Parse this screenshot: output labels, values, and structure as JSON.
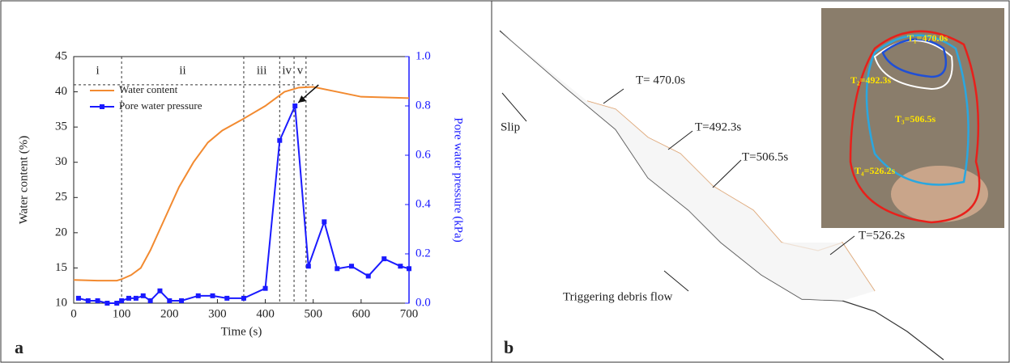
{
  "chart_data": {
    "type": "line",
    "xlabel": "Time (s)",
    "ylabel": "Water content (%)",
    "y2label": "Pore water pressure (kPa)",
    "xlim": [
      0,
      700
    ],
    "xticks": [
      0,
      100,
      200,
      300,
      400,
      500,
      600,
      700
    ],
    "ylim": [
      10,
      45
    ],
    "yticks": [
      10,
      15,
      20,
      25,
      30,
      35,
      40,
      45
    ],
    "y2lim": [
      0,
      1
    ],
    "y2ticks": [
      {
        "value": 0,
        "label": "0.0"
      },
      {
        "value": 0.2,
        "label": "0.2"
      },
      {
        "value": 0.4,
        "label": "0.4"
      },
      {
        "value": 0.6,
        "label": "0.6"
      },
      {
        "value": 0.8,
        "label": "0.8"
      },
      {
        "value": 1,
        "label": "1.0"
      }
    ],
    "legend": "upper left",
    "series": [
      {
        "name": "Water content",
        "color": "#f28a30",
        "marker": "none",
        "x": [
          0,
          50,
          90,
          100,
          120,
          140,
          160,
          180,
          200,
          220,
          250,
          280,
          310,
          350,
          400,
          440,
          470,
          500,
          550,
          600,
          650,
          700
        ],
        "values": [
          13.3,
          13.2,
          13.2,
          13.4,
          14,
          15,
          17.5,
          20.5,
          23.5,
          26.5,
          30,
          32.8,
          34.5,
          36,
          38,
          40,
          40.6,
          40.7,
          40,
          39.3,
          39.2,
          39.1
        ]
      },
      {
        "name": "Pore water pressure",
        "color": "#1a1aff",
        "marker": "square",
        "axis": "y2",
        "x": [
          10,
          30,
          50,
          70,
          90,
          100,
          115,
          130,
          145,
          160,
          180,
          200,
          225,
          260,
          290,
          320,
          355,
          400,
          430,
          462,
          490,
          523,
          550,
          580,
          615,
          648,
          682,
          700
        ],
        "values": [
          0.02,
          0.01,
          0.01,
          0,
          0,
          0.01,
          0.02,
          0.02,
          0.03,
          0.01,
          0.05,
          0.01,
          0.01,
          0.03,
          0.03,
          0.02,
          0.02,
          0.06,
          0.66,
          0.8,
          0.15,
          0.33,
          0.14,
          0.15,
          0.11,
          0.18,
          0.15,
          0.14
        ]
      }
    ],
    "phase_boundaries": [
      100,
      355,
      430,
      460,
      485
    ],
    "phase_labels": [
      "i",
      "ii",
      "iii",
      "iv",
      "v"
    ],
    "reference_line": 41
  },
  "panel_labels": [
    "a",
    "b"
  ],
  "diagram": {
    "labels": [
      "Slip",
      "Triggering debris flow",
      "T= 470.0s",
      "T=492.3s",
      "T=506.5s",
      "T=526.2s"
    ],
    "inset_labels": [
      "T₁=470.0s",
      "T₂=492.3s",
      "T₃=506.5s",
      "T₄=526.2s"
    ]
  }
}
